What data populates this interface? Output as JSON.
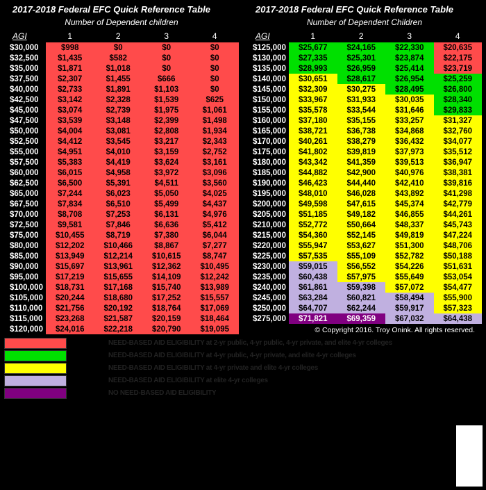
{
  "title": "2017-2018 Federal EFC Quick Reference Table",
  "subtitle_left": "Number of Dependent children",
  "subtitle_right": "Number of Dependent Children",
  "agi_label": "AGI",
  "col_headers": [
    "1",
    "2",
    "3",
    "4"
  ],
  "copyright": "© Copyright 2016. Troy Onink. All rights reserved.",
  "colors": {
    "red": "#ff4b4b",
    "green": "#00e000",
    "yellow": "#ffff00",
    "lavender": "#c0b0e0",
    "purple": "#800080",
    "bg": "#000000",
    "text_white": "#ffffff"
  },
  "legend": [
    {
      "color": "#ff4b4b",
      "text": "NEED-BASED AID ELIGIBILITY at 2-yr public, 4-yr public, 4-yr private, and elite 4-yr colleges"
    },
    {
      "color": "#00e000",
      "text": "NEED-BASED AID ELIGIBILITY at 4-yr public, 4-yr private, and elite 4-yr colleges"
    },
    {
      "color": "#ffff00",
      "text": "NEED-BASED AID ELIGIBILITY at 4-yr private and elite 4-yr colleges"
    },
    {
      "color": "#c0b0e0",
      "text": "NEED-BASED AID ELIGIBILITY at elite 4-yr colleges"
    },
    {
      "color": "#800080",
      "text": "NO NEED-BASED AID ELIGIBILITY"
    }
  ],
  "left_rows": [
    {
      "agi": "$30,000",
      "v": [
        "$998",
        "$0",
        "$0",
        "$0"
      ],
      "c": [
        "#ff4b4b",
        "#ff4b4b",
        "#ff4b4b",
        "#ff4b4b"
      ]
    },
    {
      "agi": "$32,500",
      "v": [
        "$1,435",
        "$582",
        "$0",
        "$0"
      ],
      "c": [
        "#ff4b4b",
        "#ff4b4b",
        "#ff4b4b",
        "#ff4b4b"
      ]
    },
    {
      "agi": "$35,000",
      "v": [
        "$1,871",
        "$1,018",
        "$0",
        "$0"
      ],
      "c": [
        "#ff4b4b",
        "#ff4b4b",
        "#ff4b4b",
        "#ff4b4b"
      ]
    },
    {
      "agi": "$37,500",
      "v": [
        "$2,307",
        "$1,455",
        "$666",
        "$0"
      ],
      "c": [
        "#ff4b4b",
        "#ff4b4b",
        "#ff4b4b",
        "#ff4b4b"
      ]
    },
    {
      "agi": "$40,000",
      "v": [
        "$2,733",
        "$1,891",
        "$1,103",
        "$0"
      ],
      "c": [
        "#ff4b4b",
        "#ff4b4b",
        "#ff4b4b",
        "#ff4b4b"
      ]
    },
    {
      "agi": "$42,500",
      "v": [
        "$3,142",
        "$2,328",
        "$1,539",
        "$625"
      ],
      "c": [
        "#ff4b4b",
        "#ff4b4b",
        "#ff4b4b",
        "#ff4b4b"
      ]
    },
    {
      "agi": "$45,000",
      "v": [
        "$3,074",
        "$2,739",
        "$1,975",
        "$1,061"
      ],
      "c": [
        "#ff4b4b",
        "#ff4b4b",
        "#ff4b4b",
        "#ff4b4b"
      ]
    },
    {
      "agi": "$47,500",
      "v": [
        "$3,539",
        "$3,148",
        "$2,399",
        "$1,498"
      ],
      "c": [
        "#ff4b4b",
        "#ff4b4b",
        "#ff4b4b",
        "#ff4b4b"
      ]
    },
    {
      "agi": "$50,000",
      "v": [
        "$4,004",
        "$3,081",
        "$2,808",
        "$1,934"
      ],
      "c": [
        "#ff4b4b",
        "#ff4b4b",
        "#ff4b4b",
        "#ff4b4b"
      ]
    },
    {
      "agi": "$52,500",
      "v": [
        "$4,412",
        "$3,545",
        "$3,217",
        "$2,343"
      ],
      "c": [
        "#ff4b4b",
        "#ff4b4b",
        "#ff4b4b",
        "#ff4b4b"
      ]
    },
    {
      "agi": "$55,000",
      "v": [
        "$4,951",
        "$4,010",
        "$3,159",
        "$2,752"
      ],
      "c": [
        "#ff4b4b",
        "#ff4b4b",
        "#ff4b4b",
        "#ff4b4b"
      ]
    },
    {
      "agi": "$57,500",
      "v": [
        "$5,383",
        "$4,419",
        "$3,624",
        "$3,161"
      ],
      "c": [
        "#ff4b4b",
        "#ff4b4b",
        "#ff4b4b",
        "#ff4b4b"
      ]
    },
    {
      "agi": "$60,000",
      "v": [
        "$6,015",
        "$4,958",
        "$3,972",
        "$3,096"
      ],
      "c": [
        "#ff4b4b",
        "#ff4b4b",
        "#ff4b4b",
        "#ff4b4b"
      ]
    },
    {
      "agi": "$62,500",
      "v": [
        "$6,500",
        "$5,391",
        "$4,511",
        "$3,560"
      ],
      "c": [
        "#ff4b4b",
        "#ff4b4b",
        "#ff4b4b",
        "#ff4b4b"
      ]
    },
    {
      "agi": "$65,000",
      "v": [
        "$7,244",
        "$6,023",
        "$5,050",
        "$4,025"
      ],
      "c": [
        "#ff4b4b",
        "#ff4b4b",
        "#ff4b4b",
        "#ff4b4b"
      ]
    },
    {
      "agi": "$67,500",
      "v": [
        "$7,834",
        "$6,510",
        "$5,499",
        "$4,437"
      ],
      "c": [
        "#ff4b4b",
        "#ff4b4b",
        "#ff4b4b",
        "#ff4b4b"
      ]
    },
    {
      "agi": "$70,000",
      "v": [
        "$8,708",
        "$7,253",
        "$6,131",
        "$4,976"
      ],
      "c": [
        "#ff4b4b",
        "#ff4b4b",
        "#ff4b4b",
        "#ff4b4b"
      ]
    },
    {
      "agi": "$72,500",
      "v": [
        "$9,581",
        "$7,846",
        "$6,636",
        "$5,412"
      ],
      "c": [
        "#ff4b4b",
        "#ff4b4b",
        "#ff4b4b",
        "#ff4b4b"
      ]
    },
    {
      "agi": "$75,000",
      "v": [
        "$10,455",
        "$8,719",
        "$7,380",
        "$6,044"
      ],
      "c": [
        "#ff4b4b",
        "#ff4b4b",
        "#ff4b4b",
        "#ff4b4b"
      ]
    },
    {
      "agi": "$80,000",
      "v": [
        "$12,202",
        "$10,466",
        "$8,867",
        "$7,277"
      ],
      "c": [
        "#ff4b4b",
        "#ff4b4b",
        "#ff4b4b",
        "#ff4b4b"
      ]
    },
    {
      "agi": "$85,000",
      "v": [
        "$13,949",
        "$12,214",
        "$10,615",
        "$8,747"
      ],
      "c": [
        "#ff4b4b",
        "#ff4b4b",
        "#ff4b4b",
        "#ff4b4b"
      ]
    },
    {
      "agi": "$90,000",
      "v": [
        "$15,697",
        "$13,961",
        "$12,362",
        "$10,495"
      ],
      "c": [
        "#ff4b4b",
        "#ff4b4b",
        "#ff4b4b",
        "#ff4b4b"
      ]
    },
    {
      "agi": "$95,000",
      "v": [
        "$17,219",
        "$15,655",
        "$14,109",
        "$12,242"
      ],
      "c": [
        "#ff4b4b",
        "#ff4b4b",
        "#ff4b4b",
        "#ff4b4b"
      ]
    },
    {
      "agi": "$100,000",
      "v": [
        "$18,731",
        "$17,168",
        "$15,740",
        "$13,989"
      ],
      "c": [
        "#ff4b4b",
        "#ff4b4b",
        "#ff4b4b",
        "#ff4b4b"
      ]
    },
    {
      "agi": "$105,000",
      "v": [
        "$20,244",
        "$18,680",
        "$17,252",
        "$15,557"
      ],
      "c": [
        "#ff4b4b",
        "#ff4b4b",
        "#ff4b4b",
        "#ff4b4b"
      ]
    },
    {
      "agi": "$110,000",
      "v": [
        "$21,756",
        "$20,192",
        "$18,764",
        "$17,069"
      ],
      "c": [
        "#ff4b4b",
        "#ff4b4b",
        "#ff4b4b",
        "#ff4b4b"
      ]
    },
    {
      "agi": "$115,000",
      "v": [
        "$23,268",
        "$21,587",
        "$20,159",
        "$18,464"
      ],
      "c": [
        "#ff4b4b",
        "#ff4b4b",
        "#ff4b4b",
        "#ff4b4b"
      ]
    },
    {
      "agi": "$120,000",
      "v": [
        "$24,016",
        "$22,218",
        "$20,790",
        "$19,095"
      ],
      "c": [
        "#ff4b4b",
        "#ff4b4b",
        "#ff4b4b",
        "#ff4b4b"
      ]
    }
  ],
  "right_rows": [
    {
      "agi": "$125,000",
      "v": [
        "$25,677",
        "$24,165",
        "$22,330",
        "$20,635"
      ],
      "c": [
        "#00e000",
        "#00e000",
        "#00e000",
        "#ff4b4b"
      ]
    },
    {
      "agi": "$130,000",
      "v": [
        "$27,335",
        "$25,301",
        "$23,874",
        "$22,175"
      ],
      "c": [
        "#00e000",
        "#00e000",
        "#00e000",
        "#ff4b4b"
      ]
    },
    {
      "agi": "$135,000",
      "v": [
        "$28,993",
        "$26,959",
        "$25,414",
        "$23,719"
      ],
      "c": [
        "#00e000",
        "#00e000",
        "#00e000",
        "#ff4b4b"
      ]
    },
    {
      "agi": "$140,000",
      "v": [
        "$30,651",
        "$28,617",
        "$26,954",
        "$25,259"
      ],
      "c": [
        "#ffff00",
        "#00e000",
        "#00e000",
        "#00e000"
      ]
    },
    {
      "agi": "$145,000",
      "v": [
        "$32,309",
        "$30,275",
        "$28,495",
        "$26,800"
      ],
      "c": [
        "#ffff00",
        "#ffff00",
        "#00e000",
        "#00e000"
      ]
    },
    {
      "agi": "$150,000",
      "v": [
        "$33,967",
        "$31,933",
        "$30,035",
        "$28,340"
      ],
      "c": [
        "#ffff00",
        "#ffff00",
        "#ffff00",
        "#00e000"
      ]
    },
    {
      "agi": "$155,000",
      "v": [
        "$35,578",
        "$33,544",
        "$31,646",
        "$29,833"
      ],
      "c": [
        "#ffff00",
        "#ffff00",
        "#ffff00",
        "#00e000"
      ]
    },
    {
      "agi": "$160,000",
      "v": [
        "$37,180",
        "$35,155",
        "$33,257",
        "$31,327"
      ],
      "c": [
        "#ffff00",
        "#ffff00",
        "#ffff00",
        "#ffff00"
      ]
    },
    {
      "agi": "$165,000",
      "v": [
        "$38,721",
        "$36,738",
        "$34,868",
        "$32,760"
      ],
      "c": [
        "#ffff00",
        "#ffff00",
        "#ffff00",
        "#ffff00"
      ]
    },
    {
      "agi": "$170,000",
      "v": [
        "$40,261",
        "$38,279",
        "$36,432",
        "$34,077"
      ],
      "c": [
        "#ffff00",
        "#ffff00",
        "#ffff00",
        "#ffff00"
      ]
    },
    {
      "agi": "$175,000",
      "v": [
        "$41,802",
        "$39,819",
        "$37,973",
        "$35,512"
      ],
      "c": [
        "#ffff00",
        "#ffff00",
        "#ffff00",
        "#ffff00"
      ]
    },
    {
      "agi": "$180,000",
      "v": [
        "$43,342",
        "$41,359",
        "$39,513",
        "$36,947"
      ],
      "c": [
        "#ffff00",
        "#ffff00",
        "#ffff00",
        "#ffff00"
      ]
    },
    {
      "agi": "$185,000",
      "v": [
        "$44,882",
        "$42,900",
        "$40,976",
        "$38,381"
      ],
      "c": [
        "#ffff00",
        "#ffff00",
        "#ffff00",
        "#ffff00"
      ]
    },
    {
      "agi": "$190,000",
      "v": [
        "$46,423",
        "$44,440",
        "$42,410",
        "$39,816"
      ],
      "c": [
        "#ffff00",
        "#ffff00",
        "#ffff00",
        "#ffff00"
      ]
    },
    {
      "agi": "$195,000",
      "v": [
        "$48,010",
        "$46,028",
        "$43,892",
        "$41,298"
      ],
      "c": [
        "#ffff00",
        "#ffff00",
        "#ffff00",
        "#ffff00"
      ]
    },
    {
      "agi": "$200,000",
      "v": [
        "$49,598",
        "$47,615",
        "$45,374",
        "$42,779"
      ],
      "c": [
        "#ffff00",
        "#ffff00",
        "#ffff00",
        "#ffff00"
      ]
    },
    {
      "agi": "$205,000",
      "v": [
        "$51,185",
        "$49,182",
        "$46,855",
        "$44,261"
      ],
      "c": [
        "#ffff00",
        "#ffff00",
        "#ffff00",
        "#ffff00"
      ]
    },
    {
      "agi": "$210,000",
      "v": [
        "$52,772",
        "$50,664",
        "$48,337",
        "$45,743"
      ],
      "c": [
        "#ffff00",
        "#ffff00",
        "#ffff00",
        "#ffff00"
      ]
    },
    {
      "agi": "$215,000",
      "v": [
        "$54,360",
        "$52,145",
        "$49,819",
        "$47,224"
      ],
      "c": [
        "#ffff00",
        "#ffff00",
        "#ffff00",
        "#ffff00"
      ]
    },
    {
      "agi": "$220,000",
      "v": [
        "$55,947",
        "$53,627",
        "$51,300",
        "$48,706"
      ],
      "c": [
        "#ffff00",
        "#ffff00",
        "#ffff00",
        "#ffff00"
      ]
    },
    {
      "agi": "$225,000",
      "v": [
        "$57,535",
        "$55,109",
        "$52,782",
        "$50,188"
      ],
      "c": [
        "#ffff00",
        "#ffff00",
        "#ffff00",
        "#ffff00"
      ]
    },
    {
      "agi": "$230,000",
      "v": [
        "$59,015",
        "$56,552",
        "$54,226",
        "$51,631"
      ],
      "c": [
        "#c0b0e0",
        "#ffff00",
        "#ffff00",
        "#ffff00"
      ]
    },
    {
      "agi": "$235,000",
      "v": [
        "$60,438",
        "$57,975",
        "$55,649",
        "$53,054"
      ],
      "c": [
        "#c0b0e0",
        "#ffff00",
        "#ffff00",
        "#ffff00"
      ]
    },
    {
      "agi": "$240,000",
      "v": [
        "$61,861",
        "$59,398",
        "$57,072",
        "$54,477"
      ],
      "c": [
        "#c0b0e0",
        "#c0b0e0",
        "#ffff00",
        "#ffff00"
      ]
    },
    {
      "agi": "$245,000",
      "v": [
        "$63,284",
        "$60,821",
        "$58,494",
        "$55,900"
      ],
      "c": [
        "#c0b0e0",
        "#c0b0e0",
        "#c0b0e0",
        "#ffff00"
      ]
    },
    {
      "agi": "$250,000",
      "v": [
        "$64,707",
        "$62,244",
        "$59,917",
        "$57,323"
      ],
      "c": [
        "#c0b0e0",
        "#c0b0e0",
        "#c0b0e0",
        "#ffff00"
      ]
    },
    {
      "agi": "$275,000",
      "v": [
        "$71,821",
        "$69,359",
        "$67,032",
        "$64,438"
      ],
      "c": [
        "#800080",
        "#800080",
        "#c0b0e0",
        "#c0b0e0"
      ]
    }
  ]
}
